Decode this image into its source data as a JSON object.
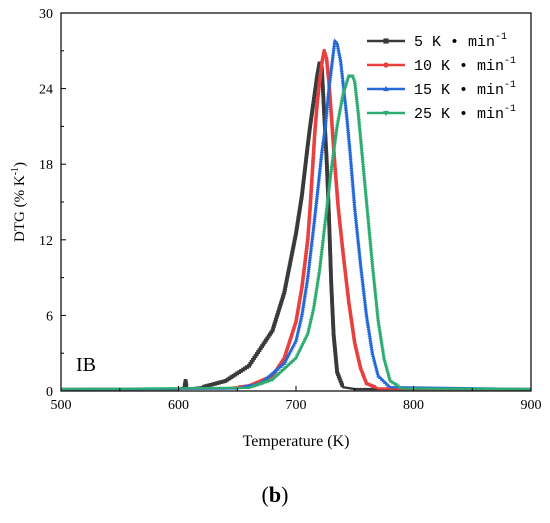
{
  "chart_data": {
    "type": "line",
    "xlabel": "Temperature (K)",
    "ylabel_main": "DTG (% K",
    "ylabel_sup": "-1",
    "ylabel_end": ")",
    "xlim": [
      500,
      900
    ],
    "ylim": [
      0,
      30
    ],
    "xticks": [
      500,
      600,
      700,
      800,
      900
    ],
    "yticks": [
      0,
      6,
      12,
      18,
      24,
      30
    ],
    "annotation": "IB",
    "legend_position": "top-right",
    "unit_main": "K • min",
    "unit_sup": "-1",
    "series": [
      {
        "name": "5",
        "color": "#3a3a3a",
        "marker": "square",
        "x": [
          500,
          600,
          605,
          606,
          607,
          608,
          610,
          620,
          640,
          660,
          680,
          690,
          700,
          705,
          710,
          712,
          715,
          718,
          720,
          722,
          724,
          726,
          728,
          730,
          732,
          735,
          740,
          750,
          900
        ],
        "y": [
          0.15,
          0.15,
          0.3,
          0.8,
          0.3,
          0.2,
          0.2,
          0.3,
          0.8,
          2.0,
          4.8,
          7.8,
          12.5,
          15.5,
          19.5,
          21.0,
          23.0,
          25.0,
          26.0,
          25.6,
          22.0,
          18.5,
          14.0,
          8.5,
          4.5,
          1.5,
          0.3,
          0.15,
          0.15
        ]
      },
      {
        "name": "10",
        "color": "#e8403f",
        "marker": "circle",
        "x": [
          500,
          640,
          660,
          680,
          690,
          700,
          705,
          710,
          712,
          714,
          716,
          718,
          720,
          722,
          724,
          726,
          728,
          730,
          733,
          736,
          740,
          745,
          750,
          755,
          760,
          770,
          900
        ],
        "y": [
          0.15,
          0.2,
          0.4,
          1.2,
          2.6,
          5.5,
          8.2,
          12.0,
          14.5,
          17.5,
          20.5,
          22.8,
          24.5,
          26.0,
          27.0,
          26.4,
          24.5,
          22.0,
          18.0,
          14.5,
          11.0,
          7.0,
          3.8,
          1.8,
          0.6,
          0.2,
          0.15
        ]
      },
      {
        "name": "15",
        "color": "#2469d6",
        "marker": "triangle-up",
        "x": [
          500,
          650,
          670,
          690,
          700,
          705,
          710,
          715,
          718,
          722,
          725,
          728,
          730,
          733,
          735,
          738,
          740,
          743,
          746,
          750,
          755,
          760,
          765,
          770,
          780,
          900
        ],
        "y": [
          0.15,
          0.2,
          0.6,
          2.2,
          4.0,
          6.0,
          9.0,
          13.0,
          15.5,
          19.0,
          21.0,
          24.0,
          25.5,
          27.8,
          27.6,
          26.2,
          24.5,
          22.0,
          19.0,
          14.5,
          10.0,
          6.0,
          3.0,
          1.2,
          0.3,
          0.15
        ]
      },
      {
        "name": "25",
        "color": "#2dab72",
        "marker": "triangle-down",
        "x": [
          500,
          660,
          680,
          700,
          710,
          715,
          720,
          725,
          730,
          735,
          740,
          745,
          748,
          750,
          753,
          756,
          760,
          765,
          770,
          775,
          780,
          790,
          900
        ],
        "y": [
          0.15,
          0.25,
          0.9,
          2.6,
          4.5,
          6.5,
          9.5,
          13.5,
          17.5,
          21.0,
          23.5,
          25.0,
          25.0,
          24.5,
          22.0,
          19.0,
          15.0,
          10.0,
          5.5,
          2.5,
          0.8,
          0.2,
          0.15
        ]
      }
    ]
  },
  "caption": {
    "label": "b",
    "open": "(",
    "close": ")"
  }
}
